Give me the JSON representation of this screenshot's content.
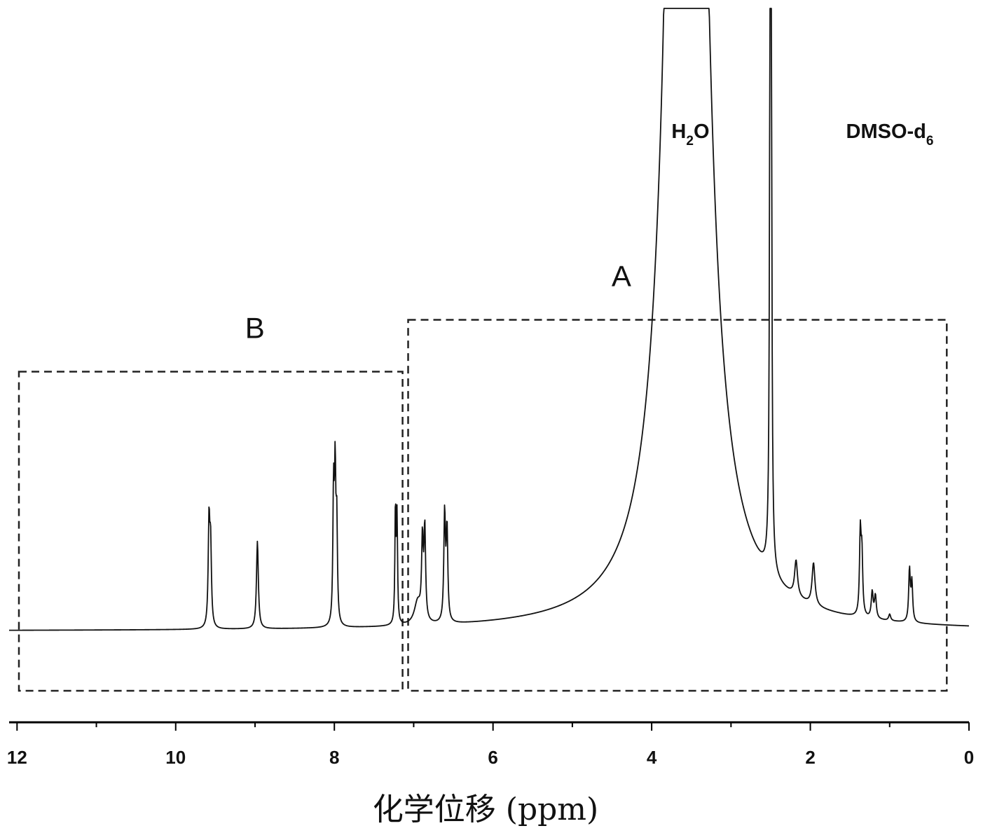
{
  "chart_data": {
    "type": "line",
    "title": "",
    "xlabel": "化学位移 (ppm)",
    "ylabel": "",
    "xlim": [
      12.1,
      0
    ],
    "x_reversed": true,
    "x_ticks": [
      12,
      10,
      8,
      6,
      4,
      2,
      0
    ],
    "x_tick_labels": [
      "12",
      "10",
      "8",
      "6",
      "4",
      "2",
      "0"
    ],
    "y_axis_shown": false,
    "grid": false,
    "ylim": [
      0,
      100
    ],
    "baseline": 4,
    "offscale_peaks_clip_at": 100,
    "series": [
      {
        "peaks": [
          {
            "x": 9.58,
            "y": 16.0,
            "w": 0.012
          },
          {
            "x": 9.56,
            "y": 12.0,
            "w": 0.012
          },
          {
            "x": 8.97,
            "y": 13.5,
            "w": 0.014
          },
          {
            "x": 8.01,
            "y": 20.0,
            "w": 0.01
          },
          {
            "x": 7.99,
            "y": 22.0,
            "w": 0.01
          },
          {
            "x": 7.97,
            "y": 15.0,
            "w": 0.01
          },
          {
            "x": 7.23,
            "y": 18.0,
            "w": 0.008
          },
          {
            "x": 7.21,
            "y": 16.0,
            "w": 0.008
          },
          {
            "x": 6.89,
            "y": 12.0,
            "w": 0.012
          },
          {
            "x": 6.86,
            "y": 14.0,
            "w": 0.012
          },
          {
            "x": 6.95,
            "y": 3.5,
            "w": 0.05
          },
          {
            "x": 6.61,
            "y": 16.5,
            "w": 0.012
          },
          {
            "x": 6.58,
            "y": 14.0,
            "w": 0.012
          },
          {
            "x": 3.83,
            "y": 5.0,
            "w": 0.012
          },
          {
            "x": 3.81,
            "y": 4.0,
            "w": 0.012
          },
          {
            "x": 3.56,
            "y": 400,
            "w": 0.16
          },
          {
            "x": 2.5,
            "y": 400,
            "w": 0.006
          },
          {
            "x": 2.18,
            "y": 5.5,
            "w": 0.022
          },
          {
            "x": 1.96,
            "y": 6.5,
            "w": 0.022
          },
          {
            "x": 1.37,
            "y": 12.5,
            "w": 0.012
          },
          {
            "x": 1.35,
            "y": 9.0,
            "w": 0.012
          },
          {
            "x": 1.22,
            "y": 4.0,
            "w": 0.014
          },
          {
            "x": 1.18,
            "y": 3.5,
            "w": 0.014
          },
          {
            "x": 1.0,
            "y": 1.0,
            "w": 0.015
          },
          {
            "x": 0.75,
            "y": 8.0,
            "w": 0.012
          },
          {
            "x": 0.72,
            "y": 6.0,
            "w": 0.012
          }
        ]
      }
    ],
    "regions": [
      {
        "label": "B",
        "x_start": 12.1,
        "x_end": 7.14,
        "y_top": 44
      },
      {
        "label": "A",
        "x_start": 7.07,
        "x_end": 0.28,
        "y_top": 52
      }
    ],
    "annotations": [
      {
        "text": "H",
        "sub": "2",
        "tail": "O",
        "x": 3.75,
        "y": 80
      },
      {
        "text": "DMSO-d",
        "sub": "6",
        "x": 1.55,
        "y": 80
      }
    ]
  }
}
